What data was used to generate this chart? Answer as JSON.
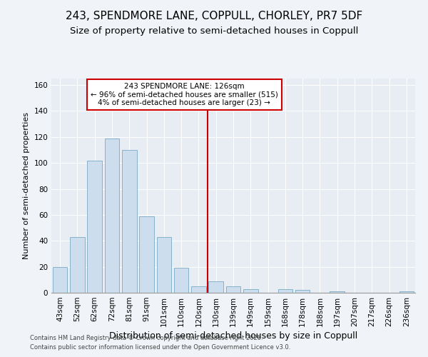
{
  "title": "243, SPENDMORE LANE, COPPULL, CHORLEY, PR7 5DF",
  "subtitle": "Size of property relative to semi-detached houses in Coppull",
  "xlabel": "Distribution of semi-detached houses by size in Coppull",
  "ylabel": "Number of semi-detached properties",
  "categories": [
    "43sqm",
    "52sqm",
    "62sqm",
    "72sqm",
    "81sqm",
    "91sqm",
    "101sqm",
    "110sqm",
    "120sqm",
    "130sqm",
    "139sqm",
    "149sqm",
    "159sqm",
    "168sqm",
    "178sqm",
    "188sqm",
    "197sqm",
    "207sqm",
    "217sqm",
    "226sqm",
    "236sqm"
  ],
  "values": [
    20,
    43,
    102,
    119,
    110,
    59,
    43,
    19,
    5,
    9,
    5,
    3,
    0,
    3,
    2,
    0,
    1,
    0,
    0,
    0,
    1
  ],
  "bar_color": "#ccdded",
  "bar_edge_color": "#7aaac4",
  "vline_x": 8.5,
  "vline_color": "#cc0000",
  "annotation_text": "243 SPENDMORE LANE: 126sqm\n← 96% of semi-detached houses are smaller (515)\n4% of semi-detached houses are larger (23) →",
  "annotation_box_color": "#cc0000",
  "ylim": [
    0,
    165
  ],
  "yticks": [
    0,
    20,
    40,
    60,
    80,
    100,
    120,
    140,
    160
  ],
  "plot_bg_color": "#e8edf4",
  "fig_bg_color": "#f0f4f8",
  "footer_line1": "Contains HM Land Registry data © Crown copyright and database right 2025.",
  "footer_line2": "Contains public sector information licensed under the Open Government Licence v3.0.",
  "title_fontsize": 11,
  "subtitle_fontsize": 9.5,
  "xlabel_fontsize": 9,
  "ylabel_fontsize": 8,
  "tick_fontsize": 7.5,
  "annotation_fontsize": 7.5,
  "footer_fontsize": 6
}
